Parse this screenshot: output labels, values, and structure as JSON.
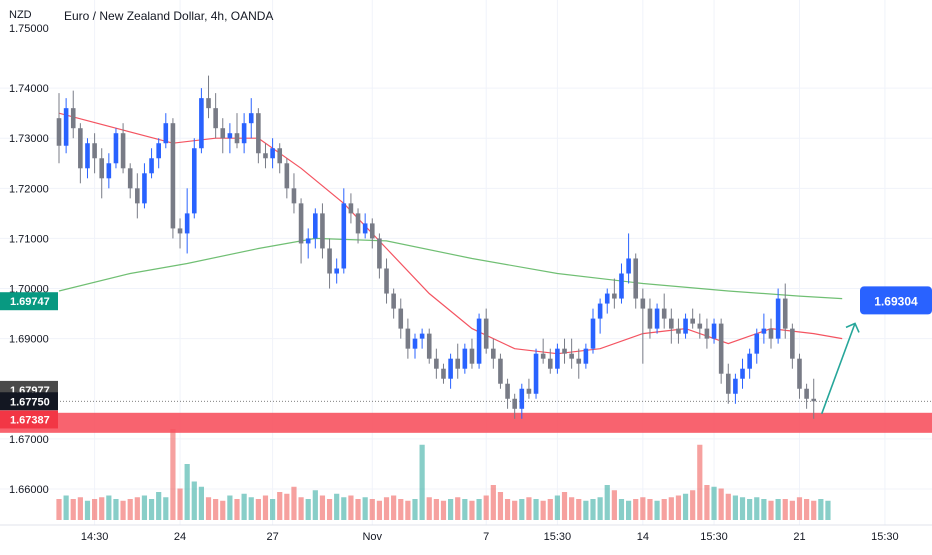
{
  "header": {
    "currency_label": "NZD",
    "title": "Euro / New Zealand Dollar, 4h, OANDA"
  },
  "colors": {
    "up": "#2962ff",
    "down": "#787b86",
    "ma_fast": "#f23645",
    "ma_slow": "#4caf50",
    "zone": "#f7525f",
    "vol_up": "#26a69a",
    "vol_down": "#ef5350",
    "target_label": "#2962ff",
    "arrow": "#26a69a",
    "grid": "#f0f3fa"
  },
  "chart_data": {
    "type": "candlestick",
    "title": "Euro / New Zealand Dollar, 4h, OANDA",
    "y_axis": {
      "range": [
        1.655,
        1.752
      ],
      "ticks": [
        "1.74000",
        "1.73000",
        "1.72000",
        "1.71000",
        "1.70000",
        "1.69000",
        "1.67000",
        "1.66000"
      ],
      "tick_values": [
        1.74,
        1.73,
        1.72,
        1.71,
        1.7,
        1.69,
        1.67,
        1.66
      ],
      "partial_top_label": "1.75000"
    },
    "x_axis": {
      "ticks": [
        {
          "label": "14:30",
          "i": 5
        },
        {
          "label": "24",
          "i": 17
        },
        {
          "label": "27",
          "i": 30
        },
        {
          "label": "Nov",
          "i": 44
        },
        {
          "label": "7",
          "i": 60
        },
        {
          "label": "15:30",
          "i": 70
        },
        {
          "label": "14",
          "i": 82
        },
        {
          "label": "15:30",
          "i": 92
        },
        {
          "label": "21",
          "i": 104
        },
        {
          "label": "15:30",
          "i": 116
        }
      ]
    },
    "price_labels": [
      {
        "text": "1.69747",
        "value": 1.69747,
        "color": "#089981"
      },
      {
        "text": "1.67977",
        "value": 1.67977,
        "color": "#4a4a4a"
      },
      {
        "text": "1.67750",
        "value": 1.6775,
        "color": "#131722"
      },
      {
        "text": "1.67387",
        "value": 1.67387,
        "color": "#f23645"
      }
    ],
    "zone": {
      "low": 1.6712,
      "high": 1.6752
    },
    "target": {
      "value": 1.69304,
      "text": "1.69304"
    },
    "candles": [
      [
        1.734,
        1.739,
        1.725,
        1.7285
      ],
      [
        1.7285,
        1.738,
        1.727,
        1.736
      ],
      [
        1.736,
        1.7395,
        1.73,
        1.732
      ],
      [
        1.732,
        1.733,
        1.721,
        1.724
      ],
      [
        1.724,
        1.73,
        1.722,
        1.729
      ],
      [
        1.729,
        1.731,
        1.723,
        1.726
      ],
      [
        1.726,
        1.728,
        1.718,
        1.722
      ],
      [
        1.722,
        1.727,
        1.72,
        1.725
      ],
      [
        1.725,
        1.732,
        1.724,
        1.731
      ],
      [
        1.731,
        1.733,
        1.723,
        1.724
      ],
      [
        1.724,
        1.725,
        1.718,
        1.72
      ],
      [
        1.72,
        1.723,
        1.714,
        1.717
      ],
      [
        1.717,
        1.725,
        1.716,
        1.723
      ],
      [
        1.723,
        1.728,
        1.722,
        1.726
      ],
      [
        1.726,
        1.73,
        1.724,
        1.729
      ],
      [
        1.729,
        1.735,
        1.728,
        1.733
      ],
      [
        1.733,
        1.734,
        1.71,
        1.712
      ],
      [
        1.712,
        1.714,
        1.708,
        1.711
      ],
      [
        1.711,
        1.72,
        1.707,
        1.715
      ],
      [
        1.715,
        1.73,
        1.714,
        1.728
      ],
      [
        1.728,
        1.74,
        1.727,
        1.738
      ],
      [
        1.738,
        1.7425,
        1.734,
        1.736
      ],
      [
        1.736,
        1.739,
        1.73,
        1.732
      ],
      [
        1.732,
        1.734,
        1.727,
        1.73
      ],
      [
        1.73,
        1.733,
        1.727,
        1.731
      ],
      [
        1.731,
        1.735,
        1.728,
        1.729
      ],
      [
        1.729,
        1.735,
        1.727,
        1.733
      ],
      [
        1.733,
        1.738,
        1.73,
        1.735
      ],
      [
        1.735,
        1.736,
        1.725,
        1.727
      ],
      [
        1.727,
        1.729,
        1.724,
        1.726
      ],
      [
        1.726,
        1.73,
        1.724,
        1.728
      ],
      [
        1.728,
        1.729,
        1.723,
        1.725
      ],
      [
        1.725,
        1.726,
        1.718,
        1.72
      ],
      [
        1.72,
        1.723,
        1.715,
        1.717
      ],
      [
        1.717,
        1.718,
        1.705,
        1.709
      ],
      [
        1.709,
        1.712,
        1.706,
        1.71
      ],
      [
        1.71,
        1.716,
        1.708,
        1.715
      ],
      [
        1.715,
        1.717,
        1.706,
        1.708
      ],
      [
        1.708,
        1.71,
        1.7,
        1.703
      ],
      [
        1.703,
        1.706,
        1.701,
        1.704
      ],
      [
        1.704,
        1.72,
        1.703,
        1.717
      ],
      [
        1.717,
        1.719,
        1.713,
        1.715
      ],
      [
        1.715,
        1.716,
        1.709,
        1.711
      ],
      [
        1.711,
        1.715,
        1.71,
        1.713
      ],
      [
        1.713,
        1.714,
        1.708,
        1.71
      ],
      [
        1.71,
        1.711,
        1.702,
        1.704
      ],
      [
        1.704,
        1.706,
        1.697,
        1.699
      ],
      [
        1.699,
        1.7,
        1.694,
        1.696
      ],
      [
        1.696,
        1.698,
        1.69,
        1.692
      ],
      [
        1.692,
        1.694,
        1.686,
        1.688
      ],
      [
        1.688,
        1.691,
        1.686,
        1.69
      ],
      [
        1.69,
        1.692,
        1.688,
        1.691
      ],
      [
        1.691,
        1.692,
        1.685,
        1.686
      ],
      [
        1.686,
        1.688,
        1.682,
        1.684
      ],
      [
        1.684,
        1.685,
        1.681,
        1.682
      ],
      [
        1.682,
        1.687,
        1.68,
        1.686
      ],
      [
        1.686,
        1.689,
        1.682,
        1.684
      ],
      [
        1.684,
        1.689,
        1.683,
        1.688
      ],
      [
        1.688,
        1.69,
        1.684,
        1.685
      ],
      [
        1.685,
        1.695,
        1.684,
        1.694
      ],
      [
        1.694,
        1.696,
        1.687,
        1.688
      ],
      [
        1.688,
        1.69,
        1.684,
        1.686
      ],
      [
        1.686,
        1.687,
        1.68,
        1.681
      ],
      [
        1.681,
        1.682,
        1.676,
        1.678
      ],
      [
        1.678,
        1.679,
        1.674,
        1.676
      ],
      [
        1.676,
        1.681,
        1.674,
        1.68
      ],
      [
        1.68,
        1.682,
        1.678,
        1.679
      ],
      [
        1.679,
        1.688,
        1.678,
        1.687
      ],
      [
        1.687,
        1.69,
        1.685,
        1.686
      ],
      [
        1.686,
        1.688,
        1.683,
        1.684
      ],
      [
        1.684,
        1.689,
        1.683,
        1.688
      ],
      [
        1.688,
        1.69,
        1.685,
        1.687
      ],
      [
        1.687,
        1.69,
        1.684,
        1.686
      ],
      [
        1.686,
        1.688,
        1.682,
        1.685
      ],
      [
        1.685,
        1.689,
        1.684,
        1.688
      ],
      [
        1.688,
        1.696,
        1.687,
        1.694
      ],
      [
        1.694,
        1.698,
        1.691,
        1.697
      ],
      [
        1.697,
        1.7,
        1.695,
        1.699
      ],
      [
        1.699,
        1.702,
        1.696,
        1.698
      ],
      [
        1.698,
        1.705,
        1.697,
        1.703
      ],
      [
        1.703,
        1.711,
        1.701,
        1.706
      ],
      [
        1.706,
        1.707,
        1.696,
        1.698
      ],
      [
        1.698,
        1.7,
        1.685,
        1.696
      ],
      [
        1.696,
        1.698,
        1.69,
        1.692
      ],
      [
        1.692,
        1.697,
        1.691,
        1.696
      ],
      [
        1.696,
        1.699,
        1.692,
        1.694
      ],
      [
        1.694,
        1.696,
        1.689,
        1.692
      ],
      [
        1.692,
        1.694,
        1.689,
        1.691
      ],
      [
        1.691,
        1.695,
        1.69,
        1.694
      ],
      [
        1.694,
        1.696,
        1.692,
        1.693
      ],
      [
        1.693,
        1.695,
        1.69,
        1.692
      ],
      [
        1.692,
        1.694,
        1.688,
        1.69
      ],
      [
        1.69,
        1.694,
        1.689,
        1.693
      ],
      [
        1.693,
        1.694,
        1.681,
        1.683
      ],
      [
        1.683,
        1.685,
        1.677,
        1.679
      ],
      [
        1.679,
        1.683,
        1.677,
        1.682
      ],
      [
        1.682,
        1.686,
        1.68,
        1.684
      ],
      [
        1.684,
        1.688,
        1.682,
        1.687
      ],
      [
        1.687,
        1.692,
        1.685,
        1.691
      ],
      [
        1.691,
        1.695,
        1.689,
        1.692
      ],
      [
        1.692,
        1.694,
        1.688,
        1.69
      ],
      [
        1.69,
        1.7,
        1.689,
        1.698
      ],
      [
        1.698,
        1.701,
        1.69,
        1.692
      ],
      [
        1.692,
        1.693,
        1.684,
        1.686
      ],
      [
        1.686,
        1.687,
        1.678,
        1.68
      ],
      [
        1.68,
        1.681,
        1.676,
        1.678
      ],
      [
        1.678,
        1.682,
        1.674,
        1.6775
      ]
    ],
    "ma_fast": [
      [
        0,
        1.735
      ],
      [
        8,
        1.732
      ],
      [
        16,
        1.729
      ],
      [
        22,
        1.73
      ],
      [
        28,
        1.73
      ],
      [
        34,
        1.724
      ],
      [
        40,
        1.717
      ],
      [
        46,
        1.708
      ],
      [
        52,
        1.699
      ],
      [
        58,
        1.692
      ],
      [
        64,
        1.688
      ],
      [
        70,
        1.687
      ],
      [
        76,
        1.688
      ],
      [
        82,
        1.691
      ],
      [
        88,
        1.692
      ],
      [
        94,
        1.689
      ],
      [
        100,
        1.692
      ],
      [
        106,
        1.691
      ],
      [
        110,
        1.69
      ]
    ],
    "ma_slow": [
      [
        0,
        1.6995
      ],
      [
        10,
        1.703
      ],
      [
        18,
        1.705
      ],
      [
        28,
        1.708
      ],
      [
        36,
        1.71
      ],
      [
        46,
        1.7095
      ],
      [
        58,
        1.706
      ],
      [
        70,
        1.703
      ],
      [
        82,
        1.701
      ],
      [
        94,
        1.6995
      ],
      [
        104,
        1.6985
      ],
      [
        110,
        1.698
      ]
    ],
    "volumes": [
      [
        0,
        12
      ],
      [
        1,
        14
      ],
      [
        2,
        12
      ],
      [
        3,
        13
      ],
      [
        4,
        11
      ],
      [
        5,
        12
      ],
      [
        6,
        13
      ],
      [
        7,
        14
      ],
      [
        8,
        12
      ],
      [
        9,
        11
      ],
      [
        10,
        12
      ],
      [
        11,
        13
      ],
      [
        12,
        14
      ],
      [
        13,
        12
      ],
      [
        14,
        16
      ],
      [
        15,
        13
      ],
      [
        16,
        52
      ],
      [
        17,
        18
      ],
      [
        18,
        32
      ],
      [
        19,
        22
      ],
      [
        20,
        19
      ],
      [
        21,
        13
      ],
      [
        22,
        12
      ],
      [
        23,
        11
      ],
      [
        24,
        14
      ],
      [
        25,
        12
      ],
      [
        26,
        15
      ],
      [
        27,
        13
      ],
      [
        28,
        12
      ],
      [
        29,
        14
      ],
      [
        30,
        12
      ],
      [
        31,
        16
      ],
      [
        32,
        15
      ],
      [
        33,
        19
      ],
      [
        34,
        13
      ],
      [
        35,
        12
      ],
      [
        36,
        17
      ],
      [
        37,
        14
      ],
      [
        38,
        12
      ],
      [
        39,
        15
      ],
      [
        40,
        13
      ],
      [
        41,
        14
      ],
      [
        42,
        12
      ],
      [
        43,
        13
      ],
      [
        44,
        12
      ],
      [
        45,
        11
      ],
      [
        46,
        13
      ],
      [
        47,
        14
      ],
      [
        48,
        12
      ],
      [
        49,
        11
      ],
      [
        50,
        12
      ],
      [
        51,
        43
      ],
      [
        52,
        13
      ],
      [
        53,
        12
      ],
      [
        54,
        11
      ],
      [
        55,
        12
      ],
      [
        56,
        13
      ],
      [
        57,
        12
      ],
      [
        58,
        11
      ],
      [
        59,
        12
      ],
      [
        60,
        14
      ],
      [
        61,
        20
      ],
      [
        62,
        16
      ],
      [
        63,
        12
      ],
      [
        64,
        11
      ],
      [
        65,
        12
      ],
      [
        66,
        13
      ],
      [
        67,
        12
      ],
      [
        68,
        11
      ],
      [
        69,
        12
      ],
      [
        70,
        14
      ],
      [
        71,
        16
      ],
      [
        72,
        13
      ],
      [
        73,
        12
      ],
      [
        74,
        11
      ],
      [
        75,
        12
      ],
      [
        76,
        13
      ],
      [
        77,
        20
      ],
      [
        78,
        17
      ],
      [
        79,
        12
      ],
      [
        80,
        11
      ],
      [
        81,
        12
      ],
      [
        82,
        13
      ],
      [
        83,
        12
      ],
      [
        84,
        11
      ],
      [
        85,
        12
      ],
      [
        86,
        13
      ],
      [
        87,
        14
      ],
      [
        88,
        15
      ],
      [
        89,
        17
      ],
      [
        90,
        43
      ],
      [
        91,
        20
      ],
      [
        92,
        19
      ],
      [
        93,
        18
      ],
      [
        94,
        15
      ],
      [
        95,
        14
      ],
      [
        96,
        13
      ],
      [
        97,
        12
      ],
      [
        98,
        13
      ],
      [
        99,
        12
      ],
      [
        100,
        11
      ],
      [
        101,
        12
      ],
      [
        102,
        12
      ],
      [
        103,
        11
      ],
      [
        104,
        13
      ],
      [
        105,
        12
      ],
      [
        106,
        11
      ],
      [
        107,
        12
      ],
      [
        108,
        11
      ]
    ]
  }
}
